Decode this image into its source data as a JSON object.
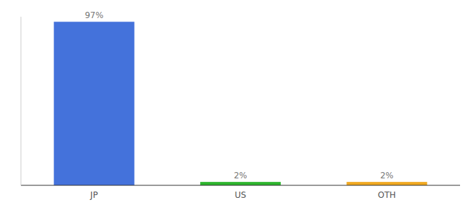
{
  "chart_data": {
    "type": "bar",
    "categories": [
      "JP",
      "US",
      "OTH"
    ],
    "values": [
      97,
      2,
      2
    ],
    "value_labels": [
      "97%",
      "2%",
      "2%"
    ],
    "colors": [
      "#4472db",
      "#2db52d",
      "#f0a820"
    ],
    "ylim": [
      0,
      100
    ],
    "data_labels": true,
    "tick_labels": "x",
    "grid": false
  }
}
